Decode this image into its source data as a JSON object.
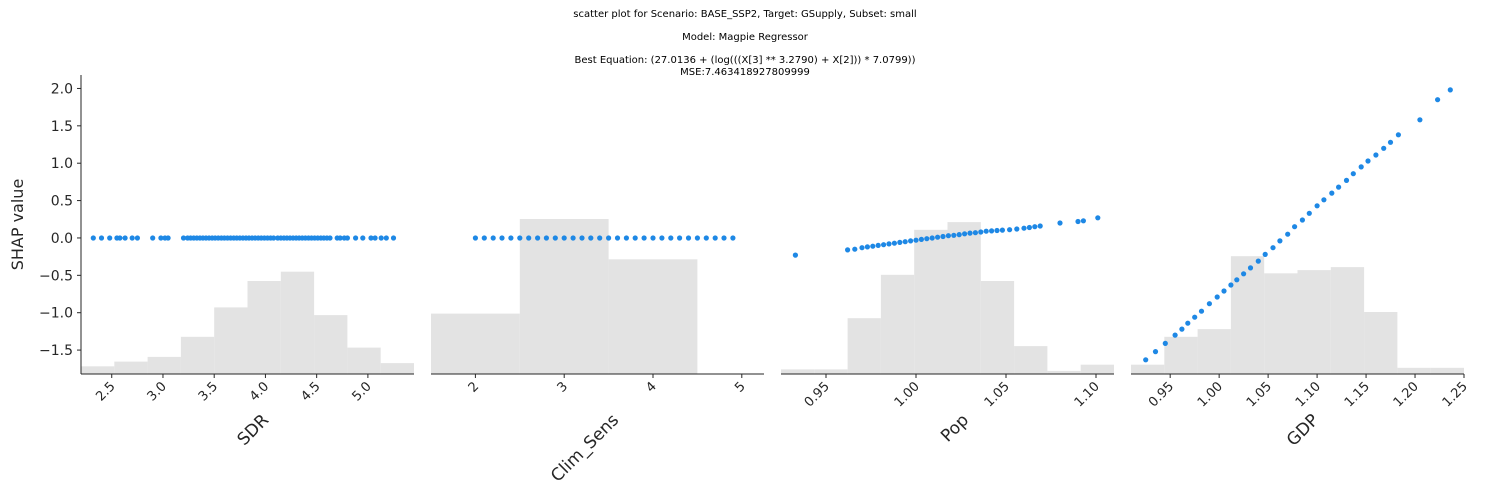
{
  "titles": {
    "line1": "scatter plot for Scenario: BASE_SSP2, Target: GSupply, Subset: small",
    "line2": "Model: Magpie Regressor",
    "line3": "Best Equation: (27.0136 + (log(((X[3] ** 3.2790) + X[2])) * 7.0799))",
    "line4": "MSE:7.463418927809999"
  },
  "colors": {
    "points": "#1e88e5",
    "hist": "#e3e3e3",
    "axis": "#262626"
  },
  "chart_data": [
    {
      "type": "scatter",
      "xlabel": "SDR",
      "ylabel": "SHAP value",
      "xlim": [
        2.2,
        5.45
      ],
      "ylim": [
        -1.82,
        2.18
      ],
      "xticks": [
        2.5,
        3.0,
        3.5,
        4.0,
        4.5,
        5.0
      ],
      "xtick_labels": [
        "2.5",
        "3.0",
        "3.5",
        "4.0",
        "4.5",
        "5.0"
      ],
      "yticks": [
        -1.5,
        -1.0,
        -0.5,
        0.0,
        0.5,
        1.0,
        1.5,
        2.0
      ],
      "ytick_labels": [
        "−1.5",
        "−1.0",
        "−0.5",
        "0.0",
        "0.5",
        "1.0",
        "1.5",
        "2.0"
      ],
      "x": [
        2.32,
        2.4,
        2.48,
        2.55,
        2.58,
        2.63,
        2.7,
        2.75,
        2.9,
        2.98,
        3.02,
        3.05,
        3.2,
        3.24,
        3.27,
        3.3,
        3.33,
        3.36,
        3.39,
        3.42,
        3.45,
        3.48,
        3.51,
        3.54,
        3.57,
        3.6,
        3.63,
        3.66,
        3.69,
        3.72,
        3.75,
        3.78,
        3.81,
        3.84,
        3.87,
        3.9,
        3.93,
        3.96,
        3.99,
        4.02,
        4.05,
        4.08,
        4.12,
        4.15,
        4.18,
        4.21,
        4.24,
        4.27,
        4.3,
        4.33,
        4.36,
        4.39,
        4.42,
        4.45,
        4.48,
        4.51,
        4.54,
        4.57,
        4.6,
        4.63,
        4.7,
        4.73,
        4.77,
        4.8,
        4.88,
        4.95,
        5.03,
        5.07,
        5.13,
        5.18,
        5.25
      ],
      "y": [
        0,
        0,
        0,
        0,
        0,
        0,
        0,
        0,
        0,
        0,
        0,
        0,
        0,
        0,
        0,
        0,
        0,
        0,
        0,
        0,
        0,
        0,
        0,
        0,
        0,
        0,
        0,
        0,
        0,
        0,
        0,
        0,
        0,
        0,
        0,
        0,
        0,
        0,
        0,
        0,
        0,
        0,
        0,
        0,
        0,
        0,
        0,
        0,
        0,
        0,
        0,
        0,
        0,
        0,
        0,
        0,
        0,
        0,
        0,
        0,
        0,
        0,
        0,
        0,
        0,
        0,
        0,
        0,
        0,
        0,
        0
      ],
      "hist_edges": [
        2.2,
        2.525,
        2.85,
        3.175,
        3.5,
        3.825,
        4.15,
        4.475,
        4.8,
        5.125,
        5.45
      ],
      "hist_rel": [
        0.05,
        0.08,
        0.11,
        0.24,
        0.43,
        0.6,
        0.66,
        0.38,
        0.17,
        0.07
      ]
    },
    {
      "type": "scatter",
      "xlabel": "Clim_Sens",
      "xlim": [
        1.5,
        5.25
      ],
      "ylim": [
        -1.82,
        2.18
      ],
      "xticks": [
        2,
        3,
        4,
        5
      ],
      "xtick_labels": [
        "2",
        "3",
        "4",
        "5"
      ],
      "x": [
        2.0,
        2.1,
        2.2,
        2.3,
        2.4,
        2.5,
        2.6,
        2.7,
        2.8,
        2.9,
        3.0,
        3.1,
        3.2,
        3.3,
        3.4,
        3.5,
        3.6,
        3.7,
        3.8,
        3.9,
        4.0,
        4.1,
        4.2,
        4.3,
        4.4,
        4.5,
        4.6,
        4.7,
        4.8,
        4.9
      ],
      "y": [
        0,
        0,
        0,
        0,
        0,
        0,
        0,
        0,
        0,
        0,
        0,
        0,
        0,
        0,
        0,
        0,
        0,
        0,
        0,
        0,
        0,
        0,
        0,
        0,
        0,
        0,
        0,
        0,
        0,
        0
      ],
      "hist_edges": [
        1.5,
        2.5,
        3.5,
        4.5,
        5.5
      ],
      "hist_rel": [
        0.39,
        1.0,
        0.74,
        0
      ]
    },
    {
      "type": "scatter",
      "xlabel": "Pop",
      "xlim": [
        0.925,
        1.11
      ],
      "ylim": [
        -1.82,
        2.18
      ],
      "xticks": [
        0.95,
        1.0,
        1.05,
        1.1
      ],
      "xtick_labels": [
        "0.95",
        "1.00",
        "1.05",
        "1.10"
      ],
      "x": [
        0.933,
        0.962,
        0.966,
        0.97,
        0.973,
        0.976,
        0.979,
        0.982,
        0.985,
        0.988,
        0.991,
        0.994,
        0.997,
        1.0,
        1.003,
        1.006,
        1.009,
        1.012,
        1.015,
        1.018,
        1.021,
        1.024,
        1.027,
        1.03,
        1.033,
        1.036,
        1.039,
        1.042,
        1.045,
        1.048,
        1.052,
        1.056,
        1.06,
        1.063,
        1.066,
        1.069,
        1.08,
        1.09,
        1.093,
        1.101
      ],
      "y": [
        -0.23,
        -0.16,
        -0.15,
        -0.13,
        -0.12,
        -0.11,
        -0.1,
        -0.09,
        -0.08,
        -0.07,
        -0.06,
        -0.05,
        -0.04,
        -0.03,
        -0.02,
        -0.01,
        0.0,
        0.01,
        0.02,
        0.03,
        0.035,
        0.045,
        0.055,
        0.065,
        0.07,
        0.08,
        0.09,
        0.095,
        0.1,
        0.105,
        0.11,
        0.12,
        0.13,
        0.14,
        0.15,
        0.16,
        0.2,
        0.22,
        0.23,
        0.27
      ],
      "hist_edges": [
        0.925,
        0.9435,
        0.962,
        0.9805,
        0.999,
        1.0175,
        1.036,
        1.0545,
        1.073,
        1.0915,
        1.11
      ],
      "hist_rel": [
        0.03,
        0.03,
        0.36,
        0.64,
        0.93,
        0.98,
        0.6,
        0.18,
        0.02,
        0.06
      ]
    },
    {
      "type": "scatter",
      "xlabel": "GDP",
      "xlim": [
        0.91,
        1.25
      ],
      "ylim": [
        -1.82,
        2.18
      ],
      "xticks": [
        0.95,
        1.0,
        1.05,
        1.1,
        1.15,
        1.2,
        1.25
      ],
      "xtick_labels": [
        "0.95",
        "1.00",
        "1.05",
        "1.10",
        "1.15",
        "1.20",
        "1.25"
      ],
      "x": [
        0.925,
        0.935,
        0.945,
        0.955,
        0.962,
        0.968,
        0.975,
        0.982,
        0.99,
        0.998,
        1.005,
        1.012,
        1.018,
        1.025,
        1.032,
        1.04,
        1.047,
        1.055,
        1.062,
        1.07,
        1.077,
        1.085,
        1.092,
        1.1,
        1.107,
        1.115,
        1.122,
        1.13,
        1.137,
        1.145,
        1.152,
        1.16,
        1.168,
        1.175,
        1.183,
        1.205,
        1.223,
        1.236
      ],
      "y": [
        -1.63,
        -1.52,
        -1.41,
        -1.3,
        -1.22,
        -1.14,
        -1.06,
        -0.98,
        -0.88,
        -0.79,
        -0.71,
        -0.63,
        -0.56,
        -0.48,
        -0.4,
        -0.31,
        -0.22,
        -0.13,
        -0.04,
        0.05,
        0.15,
        0.24,
        0.33,
        0.43,
        0.51,
        0.6,
        0.68,
        0.77,
        0.86,
        0.95,
        1.03,
        1.11,
        1.2,
        1.28,
        1.38,
        1.58,
        1.85,
        1.98
      ],
      "hist_edges": [
        0.91,
        0.944,
        0.978,
        1.012,
        1.046,
        1.08,
        1.114,
        1.148,
        1.182,
        1.216,
        1.25
      ],
      "hist_rel": [
        0.06,
        0.24,
        0.29,
        0.76,
        0.65,
        0.67,
        0.69,
        0.4,
        0.04,
        0.04
      ]
    }
  ]
}
